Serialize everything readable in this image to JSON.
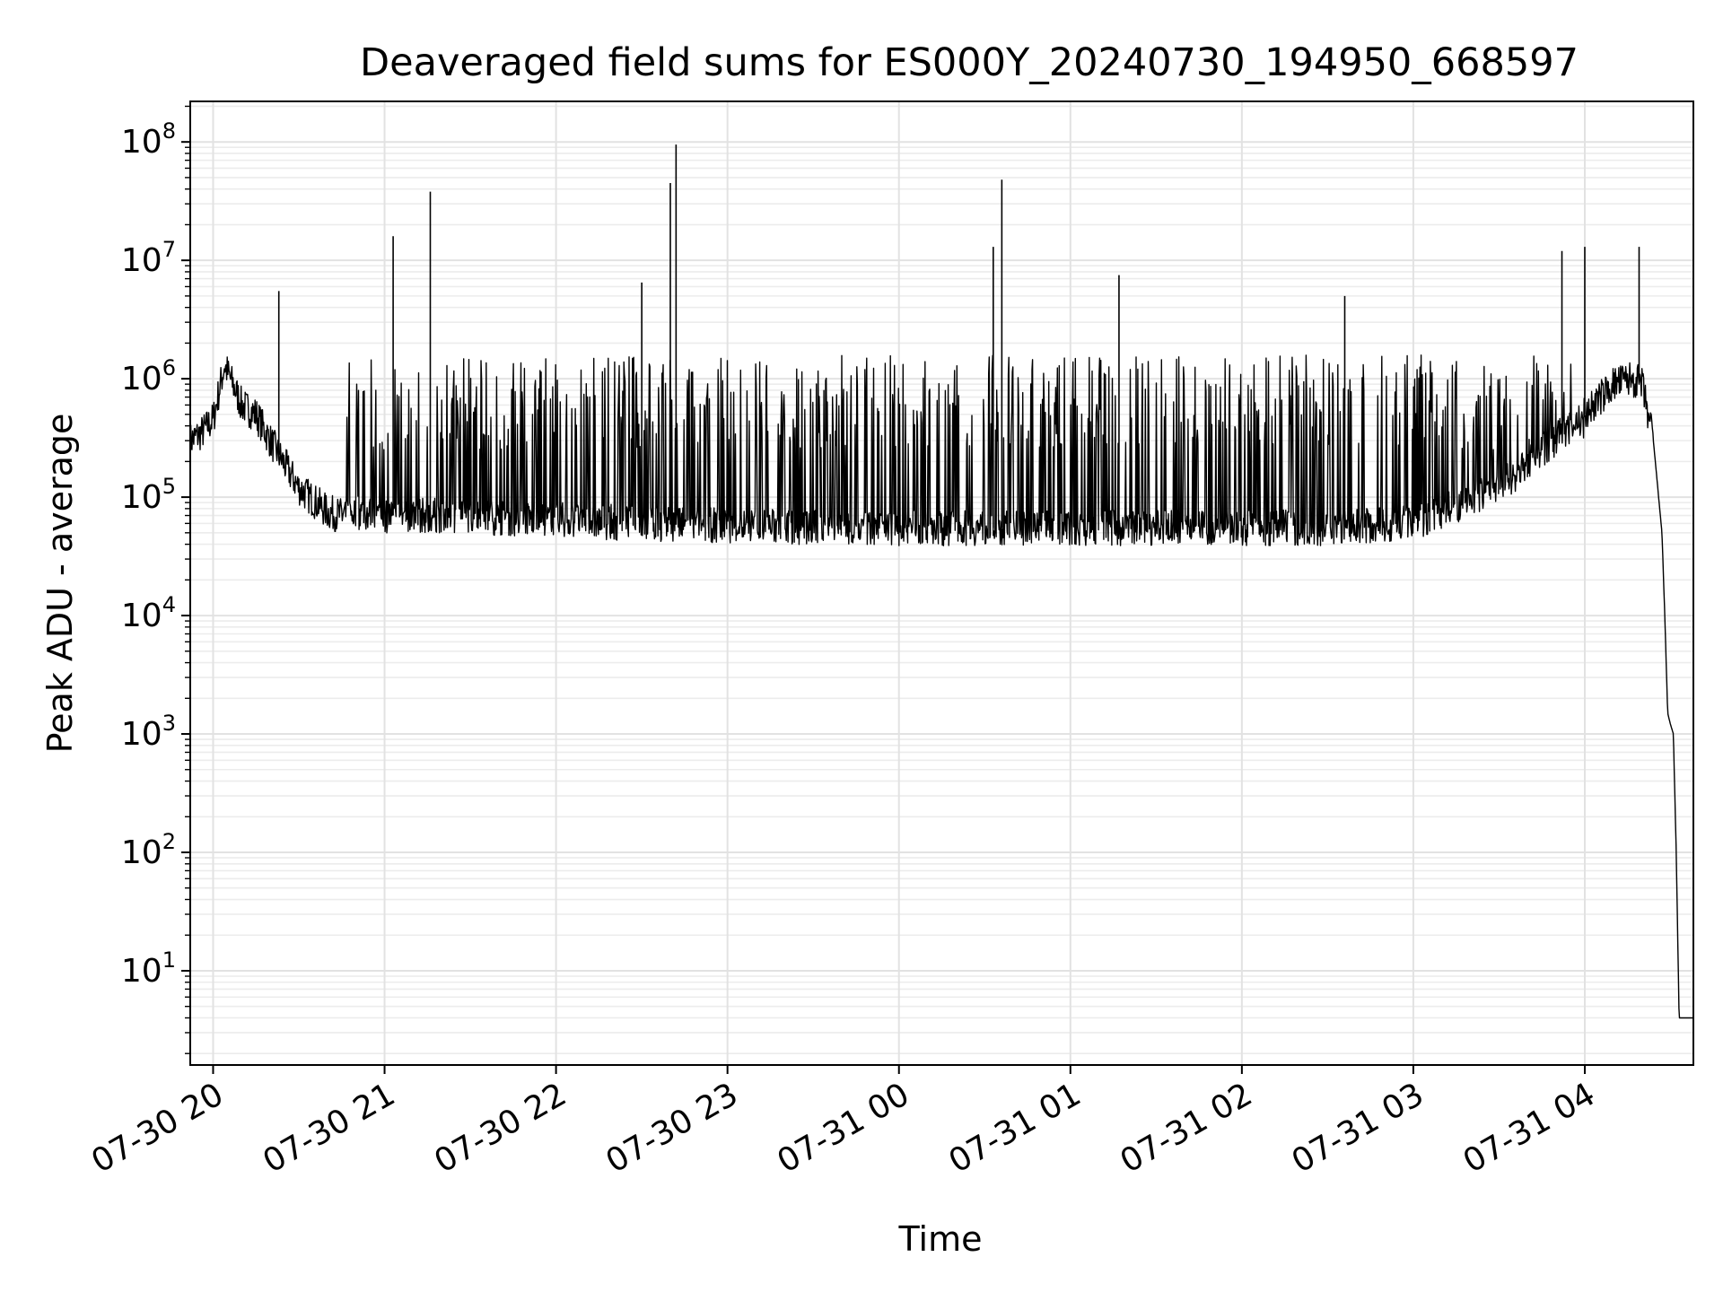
{
  "chart_data": {
    "type": "line",
    "title": "Deaveraged field sums for ES000Y_20240730_194950_668597",
    "xlabel": "Time",
    "ylabel": "Peak ADU - average",
    "yscale": "log",
    "ylim": [
      1.6,
      220000000
    ],
    "xlim": [
      "2024-07-30 19:52",
      "2024-07-31 04:38"
    ],
    "grid": true,
    "line_color": "#000000",
    "x_ticks": [
      "2024-07-30 20:00",
      "2024-07-30 21:00",
      "2024-07-30 22:00",
      "2024-07-30 23:00",
      "2024-07-31 00:00",
      "2024-07-31 01:00",
      "2024-07-31 02:00",
      "2024-07-31 03:00",
      "2024-07-31 04:00"
    ],
    "x_tick_labels": [
      "07-30 20",
      "07-30 21",
      "07-30 22",
      "07-30 23",
      "07-31 00",
      "07-31 01",
      "07-31 02",
      "07-31 03",
      "07-31 04"
    ],
    "y_ticks": [
      10,
      100,
      1000,
      10000,
      100000,
      1000000,
      10000000,
      100000000
    ],
    "y_tick_labels": [
      {
        "base": "10",
        "exp": "1"
      },
      {
        "base": "10",
        "exp": "2"
      },
      {
        "base": "10",
        "exp": "3"
      },
      {
        "base": "10",
        "exp": "4"
      },
      {
        "base": "10",
        "exp": "5"
      },
      {
        "base": "10",
        "exp": "6"
      },
      {
        "base": "10",
        "exp": "7"
      },
      {
        "base": "10",
        "exp": "8"
      }
    ],
    "series": [
      {
        "x": [
          "2024-07-30 19:52",
          "2024-07-30 19:56",
          "2024-07-30 20:00",
          "2024-07-30 20:04",
          "2024-07-30 20:10",
          "2024-07-30 20:15",
          "2024-07-30 20:20",
          "2024-07-30 20:30",
          "2024-07-30 20:40",
          "2024-07-30 20:45",
          "2024-07-30 20:50",
          "2024-07-30 21:00",
          "2024-07-30 21:10",
          "2024-07-30 21:20",
          "2024-07-30 21:30",
          "2024-07-30 21:45",
          "2024-07-30 22:00",
          "2024-07-30 22:15",
          "2024-07-30 22:30",
          "2024-07-30 22:45",
          "2024-07-30 23:00",
          "2024-07-30 23:30",
          "2024-07-31 00:00",
          "2024-07-31 00:30",
          "2024-07-31 01:00",
          "2024-07-31 01:30",
          "2024-07-31 02:00",
          "2024-07-31 02:30",
          "2024-07-31 03:00",
          "2024-07-31 03:30",
          "2024-07-31 04:00",
          "2024-07-31 04:10",
          "2024-07-31 04:16",
          "2024-07-31 04:20",
          "2024-07-31 04:24",
          "2024-07-31 04:27",
          "2024-07-31 04:28",
          "2024-07-31 04:29",
          "2024-07-31 04:30",
          "2024-07-31 04:31",
          "2024-07-31 04:32",
          "2024-07-31 04:33",
          "2024-07-31 04:35",
          "2024-07-31 04:38"
        ],
        "values": [
          300000,
          350000,
          450000,
          1300000,
          600000,
          500000,
          300000,
          120000,
          75000,
          70000,
          75000,
          70000,
          70000,
          70000,
          70000,
          65000,
          65000,
          62000,
          60000,
          58000,
          58000,
          55000,
          55000,
          55000,
          55000,
          55000,
          55000,
          55000,
          60000,
          120000,
          500000,
          900000,
          1000000,
          900000,
          300000,
          50000,
          10000,
          1500,
          1200,
          1000,
          100,
          4,
          4,
          4
        ]
      }
    ],
    "spikes": [
      {
        "x": "2024-07-30 20:23",
        "value": 5500000
      },
      {
        "x": "2024-07-30 21:03",
        "value": 16000000
      },
      {
        "x": "2024-07-30 21:16",
        "value": 38000000
      },
      {
        "x": "2024-07-30 22:30",
        "value": 6500000
      },
      {
        "x": "2024-07-30 22:40",
        "value": 45000000
      },
      {
        "x": "2024-07-30 22:42",
        "value": 95000000
      },
      {
        "x": "2024-07-31 00:33",
        "value": 13000000
      },
      {
        "x": "2024-07-31 00:36",
        "value": 48000000
      },
      {
        "x": "2024-07-31 01:17",
        "value": 7500000
      },
      {
        "x": "2024-07-31 02:36",
        "value": 5000000
      },
      {
        "x": "2024-07-31 03:52",
        "value": 12000000
      },
      {
        "x": "2024-07-31 04:00",
        "value": 13000000
      },
      {
        "x": "2024-07-31 04:19",
        "value": 13000000
      }
    ]
  }
}
